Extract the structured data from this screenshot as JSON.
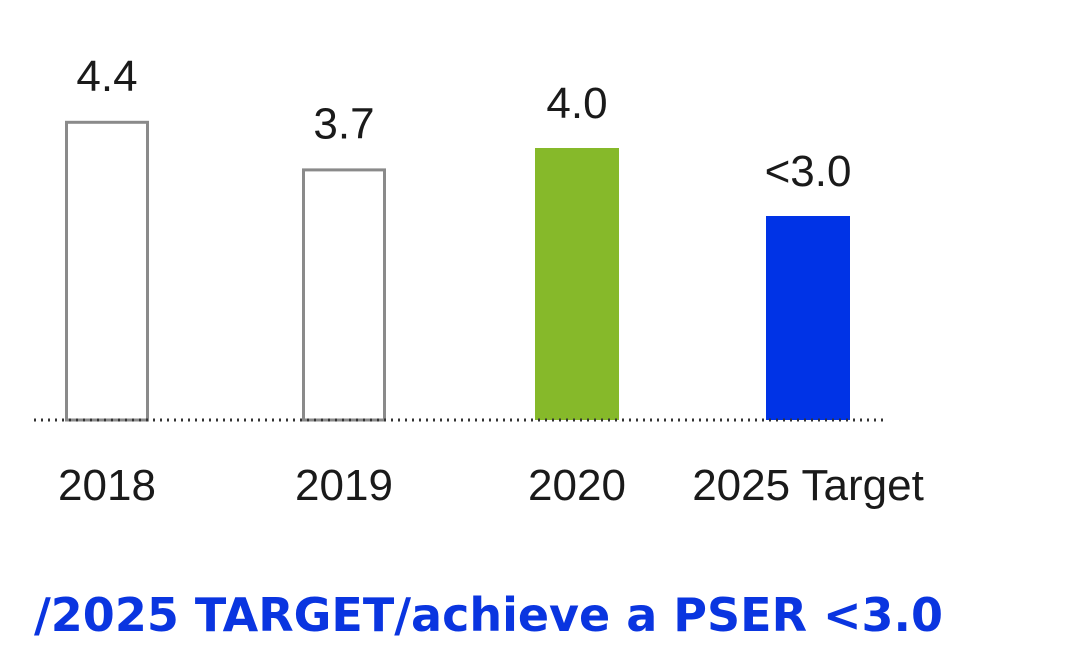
{
  "chart_data": {
    "type": "bar",
    "categories": [
      "2018",
      "2019",
      "2020",
      "2025 Target"
    ],
    "values": [
      4.4,
      3.7,
      4.0,
      3.0
    ],
    "value_labels": [
      "4.4",
      "3.7",
      "4.0",
      "<3.0"
    ],
    "bar_styles": [
      "outline",
      "outline",
      "filled",
      "filled"
    ],
    "bar_colors": [
      "#8a8a8a",
      "#8a8a8a",
      "#86b92a",
      "#0033e6"
    ],
    "ylim": [
      0,
      4.8
    ],
    "baseline": "dotted",
    "grid": false,
    "legend": "none"
  },
  "footer": {
    "text": "/2025 TARGET/achieve a PSER <3.0",
    "color": "#0a35e0"
  }
}
